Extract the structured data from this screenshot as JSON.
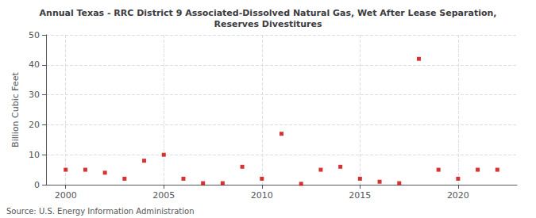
{
  "chart_data": {
    "type": "scatter",
    "title": "Annual Texas - RRC District 9 Associated-Dissolved Natural Gas, Wet After Lease Separation,\nReserves Divestitures",
    "ylabel": "Billion Cubic Feet",
    "annotation": "Source: U.S. Energy Information Administration",
    "x": [
      2000,
      2001,
      2002,
      2003,
      2004,
      2005,
      2006,
      2007,
      2008,
      2009,
      2010,
      2011,
      2012,
      2013,
      2014,
      2015,
      2016,
      2017,
      2018,
      2019,
      2020,
      2021,
      2022
    ],
    "values": [
      5.0,
      5.0,
      4.0,
      2.0,
      8.0,
      10.0,
      2.0,
      0.5,
      0.5,
      6.0,
      2.0,
      17.0,
      0.3,
      5.0,
      6.0,
      2.0,
      1.0,
      0.5,
      42.0,
      5.0,
      2.0,
      5.0,
      5.0
    ],
    "color": "#cc0000",
    "marker": "square",
    "xlim": [
      1999,
      2023
    ],
    "xticks": [
      2000,
      2005,
      2010,
      2015,
      2020
    ],
    "ylim": [
      0,
      50
    ],
    "yticks": [
      0,
      10,
      20,
      30,
      40,
      50
    ],
    "grid": true
  }
}
